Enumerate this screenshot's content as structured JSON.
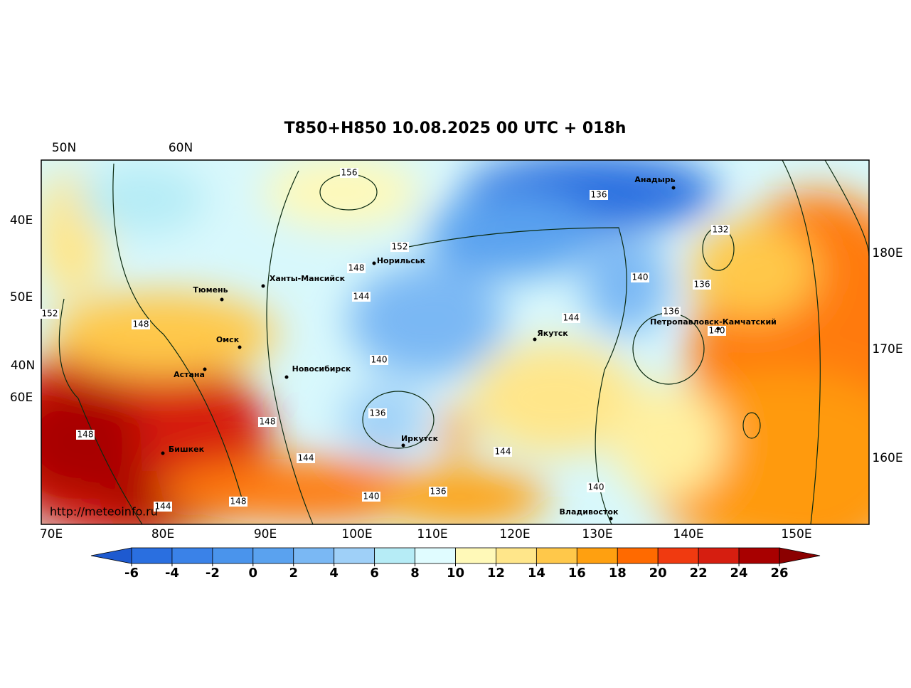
{
  "title": "T850+H850 10.08.2025 00 UTC + 018h",
  "grid_labels": {
    "top": [
      "50N",
      "60N"
    ],
    "left": [
      "40E",
      "50E",
      "40N",
      "60E"
    ],
    "right": [
      "180E",
      "170E",
      "160E"
    ],
    "bottom": [
      "70E",
      "80E",
      "90E",
      "100E",
      "110E",
      "120E",
      "130E",
      "140E",
      "150E"
    ]
  },
  "cities": [
    "Анадырь",
    "Норильськ",
    "Ханты-Мансийск",
    "Тюмень",
    "Якутск",
    "Петропавловск-Камчатский",
    "Омск",
    "Новосибирск",
    "Астана",
    "Иркутск",
    "Бишкек",
    "Владивосток"
  ],
  "contour_labels": [
    156,
    136,
    132,
    152,
    148,
    140,
    136,
    144,
    152,
    136,
    144,
    148,
    140,
    140,
    136,
    148,
    148,
    144,
    144,
    140,
    136,
    140,
    148,
    144
  ],
  "watermark": "http://meteoinfo.ru",
  "colorbar": {
    "ticks": [
      -6,
      -4,
      -2,
      0,
      2,
      4,
      6,
      8,
      10,
      12,
      14,
      16,
      18,
      20,
      22,
      24,
      26
    ],
    "colors": [
      "#2a6fe0",
      "#3a82e8",
      "#4a94ec",
      "#5aa2ef",
      "#7ab8f4",
      "#9fd0f8",
      "#b6ecf6",
      "#e0fcff",
      "#fff9b8",
      "#ffe68a",
      "#ffc84a",
      "#ffa010",
      "#ff6a00",
      "#f03a10",
      "#d61e10",
      "#a80000"
    ],
    "under_color": "#1e5ad0",
    "over_color": "#8b0000"
  }
}
